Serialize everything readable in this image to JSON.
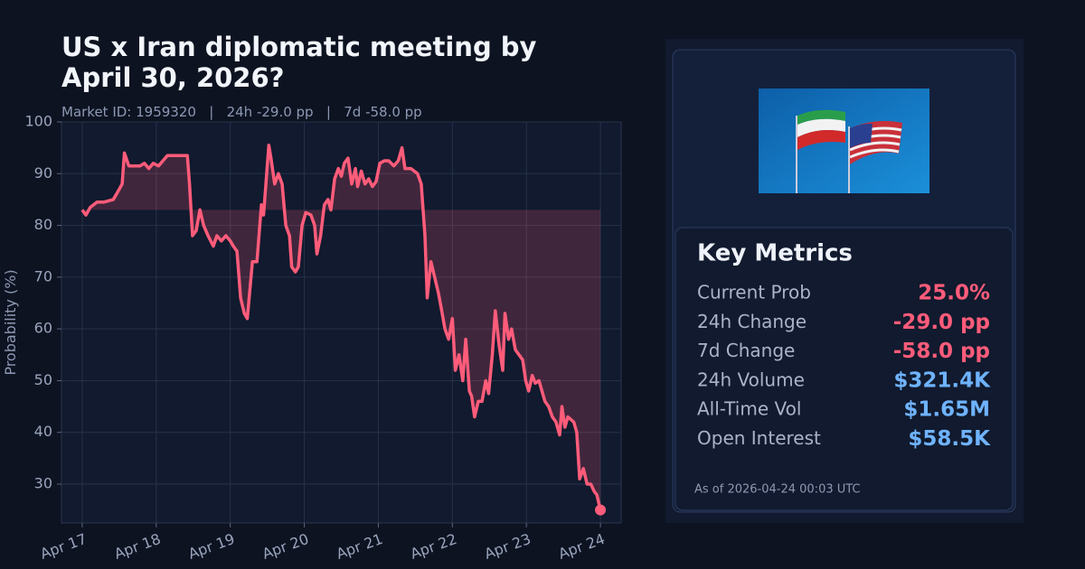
{
  "chart_data": {
    "type": "line",
    "title": "US x Iran diplomatic meeting by April 30, 2026?",
    "subtitle": "Market ID: 1959320   |   24h -29.0 pp   |   7d -58.0 pp",
    "y_label": "Probability (%)",
    "color": "#ff5c7a",
    "x": [
      0,
      0.05,
      0.11,
      0.2,
      0.29,
      0.42,
      0.5,
      0.54,
      0.57,
      0.63,
      0.78,
      0.84,
      0.9,
      0.96,
      1.03,
      1.15,
      1.33,
      1.42,
      1.45,
      1.49,
      1.54,
      1.59,
      1.64,
      1.7,
      1.77,
      1.82,
      1.88,
      1.94,
      2,
      2.04,
      2.09,
      2.14,
      2.19,
      2.23,
      2.3,
      2.36,
      2.42,
      2.45,
      2.52,
      2.55,
      2.6,
      2.65,
      2.7,
      2.75,
      2.8,
      2.83,
      2.88,
      2.92,
      2.97,
      3.02,
      3.09,
      3.14,
      3.17,
      3.22,
      3.27,
      3.32,
      3.36,
      3.41,
      3.46,
      3.5,
      3.54,
      3.59,
      3.64,
      3.69,
      3.72,
      3.77,
      3.82,
      3.87,
      3.92,
      3.97,
      4.02,
      4.08,
      4.14,
      4.21,
      4.27,
      4.32,
      4.36,
      4.44,
      4.53,
      4.58,
      4.63,
      4.66,
      4.71,
      4.76,
      4.81,
      4.85,
      4.9,
      4.95,
      5,
      5.04,
      5.09,
      5.14,
      5.18,
      5.23,
      5.26,
      5.3,
      5.35,
      5.4,
      5.45,
      5.49,
      5.54,
      5.58,
      5.63,
      5.68,
      5.71,
      5.76,
      5.8,
      5.85,
      5.9,
      5.95,
      5.99,
      6.03,
      6.08,
      6.12,
      6.17,
      6.21,
      6.25,
      6.3,
      6.35,
      6.4,
      6.45,
      6.48,
      6.52,
      6.56,
      6.64,
      6.68,
      6.72,
      6.77,
      6.82,
      6.87,
      6.92,
      6.95,
      7
    ],
    "values": [
      83,
      82,
      83.5,
      84.5,
      84.5,
      85,
      87,
      88,
      94,
      91.5,
      91.5,
      92,
      91,
      92,
      91.5,
      93.5,
      93.5,
      93.5,
      88,
      78,
      79,
      83,
      80,
      78,
      76,
      78,
      77,
      78,
      77,
      76,
      75,
      66,
      63,
      62,
      73,
      73,
      84,
      82,
      95.5,
      93,
      88,
      90,
      88,
      80,
      78,
      72,
      71,
      72,
      80,
      82.5,
      82,
      80,
      74.5,
      78,
      84,
      85,
      83,
      89,
      91,
      89.5,
      92,
      93,
      88,
      91,
      87.5,
      90.5,
      88,
      89,
      87.5,
      88.5,
      92,
      92.5,
      92.5,
      91.5,
      92.5,
      95,
      91,
      91,
      90,
      88,
      78,
      66,
      73,
      70,
      67,
      64,
      60,
      58,
      62,
      52,
      55,
      50,
      58,
      48,
      47,
      43,
      46,
      46,
      50,
      47.5,
      55,
      63.5,
      57,
      52,
      63,
      58,
      60,
      56,
      55,
      54,
      50,
      48,
      51,
      49.5,
      50,
      48,
      46,
      45,
      43,
      42,
      39.5,
      45,
      41,
      43,
      42,
      40,
      31,
      33,
      30,
      30,
      28.5,
      28,
      25
    ],
    "xlim": [
      -0.28,
      7.28
    ],
    "xticks": [
      {
        "value": 0,
        "label": "Apr 17"
      },
      {
        "value": 1,
        "label": "Apr 18"
      },
      {
        "value": 2,
        "label": "Apr 19"
      },
      {
        "value": 3,
        "label": "Apr 20"
      },
      {
        "value": 4,
        "label": "Apr 21"
      },
      {
        "value": 5,
        "label": "Apr 22"
      },
      {
        "value": 6,
        "label": "Apr 23"
      },
      {
        "value": 7,
        "label": "Apr 24"
      }
    ],
    "ylim": [
      22.5,
      100
    ],
    "yticks": [
      30,
      40,
      50,
      60,
      70,
      80,
      90,
      100
    ],
    "grid": true
  },
  "panel": {
    "title": "Key Metrics",
    "metrics": [
      {
        "label": "Current Prob",
        "value": "25.0%",
        "color": "#ff5c7a"
      },
      {
        "label": "24h Change",
        "value": "-29.0 pp",
        "color": "#ff5c7a"
      },
      {
        "label": "7d Change",
        "value": "-58.0 pp",
        "color": "#ff5c7a"
      },
      {
        "label": "24h Volume",
        "value": "$321.4K",
        "color": "#6fb3ff"
      },
      {
        "label": "All-Time Vol",
        "value": "$1.65M",
        "color": "#6fb3ff"
      },
      {
        "label": "Open Interest",
        "value": "$58.5K",
        "color": "#6fb3ff"
      }
    ],
    "timestamp": "As of 2026-04-24 00:03 UTC"
  }
}
